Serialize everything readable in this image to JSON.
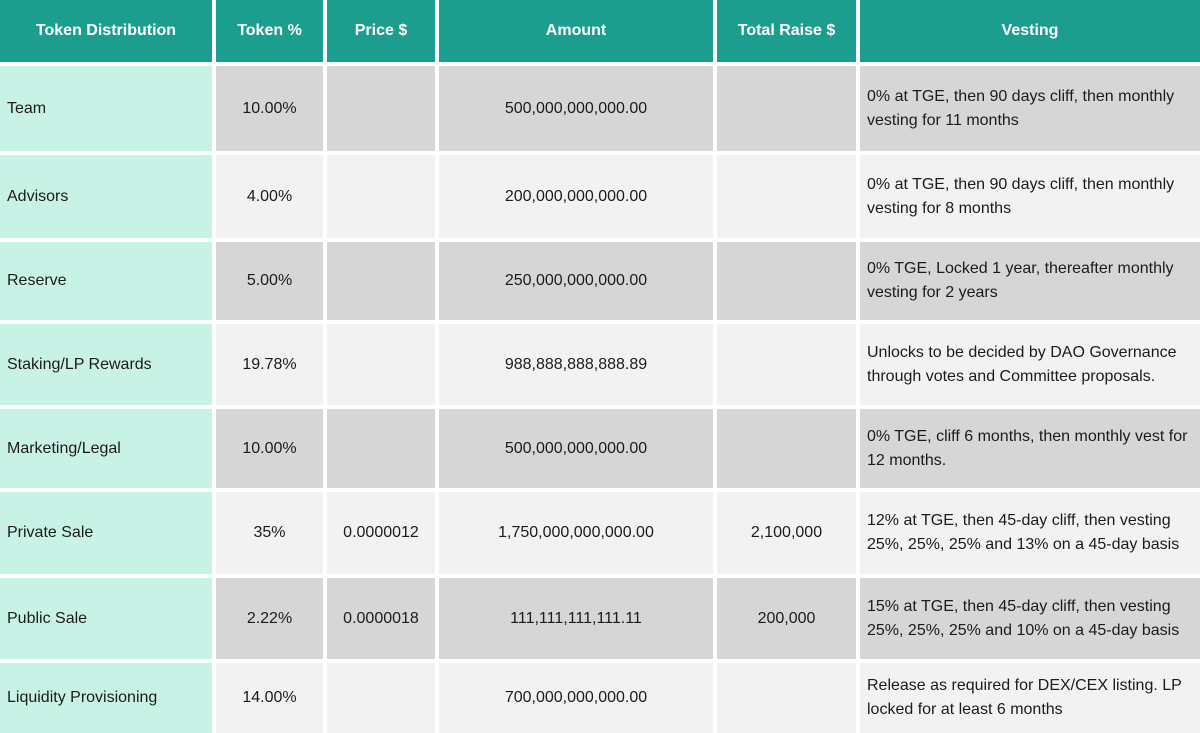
{
  "table": {
    "columns": [
      {
        "label": "Token Distribution"
      },
      {
        "label": "Token %"
      },
      {
        "label": "Price $"
      },
      {
        "label": "Amount"
      },
      {
        "label": "Total Raise $"
      },
      {
        "label": "Vesting"
      }
    ],
    "rows": [
      {
        "distribution": "Team",
        "token_pct": "10.00%",
        "price": "",
        "amount": "500,000,000,000.00",
        "total_raise": "",
        "vesting": "0% at TGE, then 90 days cliff, then monthly vesting for 11 months"
      },
      {
        "distribution": "Advisors",
        "token_pct": "4.00%",
        "price": "",
        "amount": "200,000,000,000.00",
        "total_raise": "",
        "vesting": "0% at TGE, then 90 days cliff, then monthly vesting for 8 months"
      },
      {
        "distribution": "Reserve",
        "token_pct": "5.00%",
        "price": "",
        "amount": "250,000,000,000.00",
        "total_raise": "",
        "vesting": "0% TGE, Locked 1 year, thereafter monthly vesting for 2 years"
      },
      {
        "distribution": "Staking/LP Rewards",
        "token_pct": "19.78%",
        "price": "",
        "amount": "988,888,888,888.89",
        "total_raise": "",
        "vesting": "Unlocks to be decided by DAO Governance through votes and Committee proposals."
      },
      {
        "distribution": "Marketing/Legal",
        "token_pct": "10.00%",
        "price": "",
        "amount": "500,000,000,000.00",
        "total_raise": "",
        "vesting": "0% TGE, cliff 6 months, then monthly vest for 12 months."
      },
      {
        "distribution": "Private Sale",
        "token_pct": "35%",
        "price": "0.0000012",
        "amount": "1,750,000,000,000.00",
        "total_raise": "2,100,000",
        "vesting": "12% at TGE, then 45-day cliff, then vesting 25%, 25%, 25% and 13% on a 45-day basis"
      },
      {
        "distribution": "Public Sale",
        "token_pct": "2.22%",
        "price": "0.0000018",
        "amount": "111,111,111,111.11",
        "total_raise": "200,000",
        "vesting": "15% at TGE, then 45-day cliff, then vesting 25%, 25%, 25% and 10% on a 45-day basis"
      },
      {
        "distribution": "Liquidity Provisioning",
        "token_pct": "14.00%",
        "price": "",
        "amount": "700,000,000,000.00",
        "total_raise": "",
        "vesting": "Release as required for DEX/CEX listing. LP locked for at least 6 months"
      }
    ]
  },
  "chart_data": {
    "type": "table",
    "title": "Token Distribution",
    "columns": [
      "Token Distribution",
      "Token %",
      "Price $",
      "Amount",
      "Total Raise $",
      "Vesting"
    ],
    "rows": [
      [
        "Team",
        "10.00%",
        "",
        "500,000,000,000.00",
        "",
        "0% at TGE, then 90 days cliff, then monthly vesting for 11 months"
      ],
      [
        "Advisors",
        "4.00%",
        "",
        "200,000,000,000.00",
        "",
        "0% at TGE, then 90 days cliff, then monthly vesting for 8 months"
      ],
      [
        "Reserve",
        "5.00%",
        "",
        "250,000,000,000.00",
        "",
        "0% TGE, Locked 1 year, thereafter monthly vesting for 2 years"
      ],
      [
        "Staking/LP Rewards",
        "19.78%",
        "",
        "988,888,888,888.89",
        "",
        "Unlocks to be decided by DAO Governance through votes and Committee proposals."
      ],
      [
        "Marketing/Legal",
        "10.00%",
        "",
        "500,000,000,000.00",
        "",
        "0% TGE, cliff 6 months, then monthly vest for 12 months."
      ],
      [
        "Private Sale",
        "35%",
        "0.0000012",
        "1,750,000,000,000.00",
        "2,100,000",
        "12% at TGE, then 45-day cliff, then vesting 25%, 25%, 25% and 13% on a 45-day basis"
      ],
      [
        "Public Sale",
        "2.22%",
        "0.0000018",
        "111,111,111,111.11",
        "200,000",
        "15% at TGE, then 45-day cliff, then vesting 25%, 25%, 25% and 10% on a 45-day basis"
      ],
      [
        "Liquidity Provisioning",
        "14.00%",
        "",
        "700,000,000,000.00",
        "",
        "Release as required for DEX/CEX listing. LP locked for at least 6 months"
      ]
    ]
  },
  "colors": {
    "header_bg": "#1B9E8D",
    "header_text": "#FFFFFF",
    "label_col_bg": "#C9F2E7",
    "row_dark_bg": "#D6D6D6",
    "row_light_bg": "#F2F2F2",
    "body_text": "#1B1B1B"
  }
}
